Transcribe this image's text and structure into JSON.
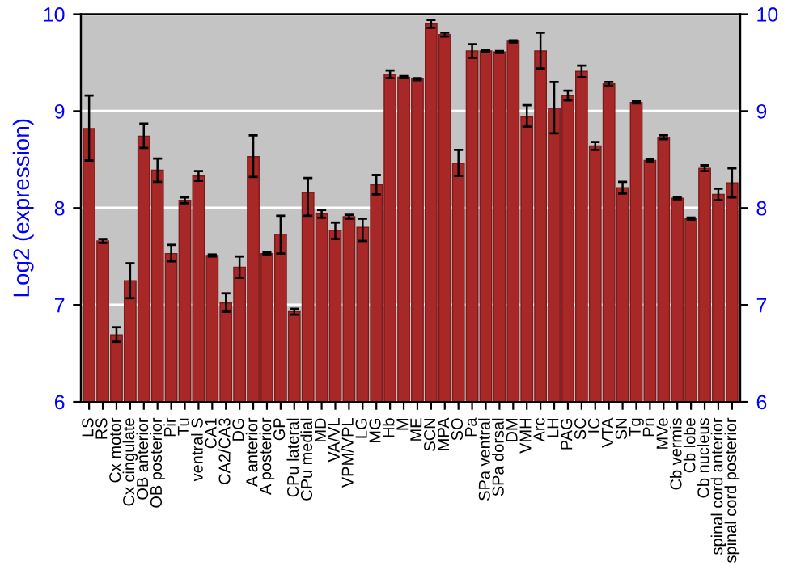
{
  "chart_data": {
    "type": "bar",
    "ylabel": "Log2 (expression)",
    "categories": [
      "LS",
      "RS",
      "Cx motor",
      "Cx cingulate",
      "OB anterior",
      "OB posterior",
      "Pir",
      "Tu",
      "ventral S",
      "CA1",
      "CA2/CA3",
      "DG",
      "A anterior",
      "A posterior",
      "GP",
      "CPu lateral",
      "CPu medial",
      "MD",
      "VA/VL",
      "VPM/VPL",
      "LG",
      "MG",
      "Hb",
      "M",
      "ME",
      "SCN",
      "MPA",
      "SO",
      "Pa",
      "SPa ventral",
      "SPa dorsal",
      "DM",
      "VMH",
      "Arc",
      "LH",
      "PAG",
      "SC",
      "IC",
      "VTA",
      "SN",
      "Tg",
      "Pn",
      "MVe",
      "Cb vermis",
      "Cb lobe",
      "Cb nucleus",
      "spinal cord anterior",
      "spinal cord posterior"
    ],
    "series": [
      {
        "color": "#a82828",
        "values": [
          8.82,
          7.66,
          6.69,
          7.25,
          8.74,
          8.39,
          7.53,
          8.08,
          8.33,
          7.51,
          7.02,
          7.39,
          8.53,
          7.53,
          7.73,
          6.93,
          8.16,
          7.94,
          7.77,
          7.91,
          7.8,
          8.24,
          9.38,
          9.35,
          9.33,
          9.9,
          9.79,
          8.46,
          9.62,
          9.62,
          9.61,
          9.72,
          8.94,
          9.62,
          9.03,
          9.16,
          9.41,
          8.64,
          9.28,
          8.21,
          9.09,
          8.49,
          8.73,
          8.1,
          7.89,
          8.41,
          8.14,
          8.26
        ],
        "errors": [
          [
            8.49,
            9.16
          ],
          0.02,
          [
            6.62,
            6.77
          ],
          [
            7.07,
            7.43
          ],
          [
            8.62,
            8.87
          ],
          [
            8.27,
            8.51
          ],
          [
            7.45,
            7.62
          ],
          0.03,
          0.05,
          0.01,
          [
            6.93,
            7.12
          ],
          [
            7.28,
            7.5
          ],
          [
            8.32,
            8.75
          ],
          0.01,
          [
            7.53,
            7.92
          ],
          0.03,
          [
            7.92,
            8.31
          ],
          0.04,
          [
            7.68,
            7.85
          ],
          0.02,
          [
            7.66,
            7.89
          ],
          [
            8.14,
            8.34
          ],
          0.04,
          0.01,
          0.01,
          0.04,
          0.02,
          [
            8.33,
            8.6
          ],
          0.07,
          0.01,
          0.01,
          0.01,
          [
            8.84,
            9.06
          ],
          [
            9.44,
            9.81
          ],
          [
            8.77,
            9.3
          ],
          0.05,
          0.06,
          0.04,
          0.02,
          0.06,
          0.01,
          0.01,
          0.02,
          0.01,
          0.01,
          0.03,
          0.06,
          0.15
        ]
      }
    ],
    "ylim": [
      6,
      10
    ],
    "yticks": [
      6,
      7,
      8,
      9,
      10
    ],
    "y2lim": [
      6,
      10
    ],
    "y2ticks": [
      6,
      7,
      8,
      9,
      10
    ],
    "grid": "y",
    "legend": false
  }
}
